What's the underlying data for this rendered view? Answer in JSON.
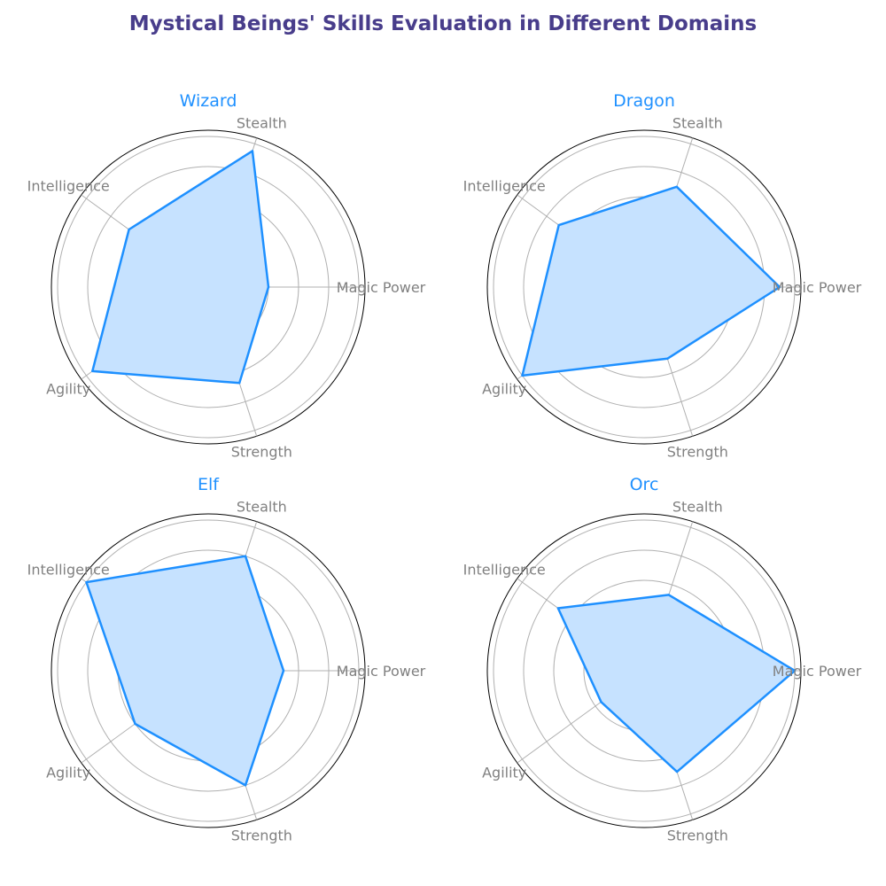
{
  "title": "Mystical Beings' Skills Evaluation in Different Domains",
  "colors": {
    "title": "#483d8b",
    "subtitle": "#1e90ff",
    "line": "#1e90ff",
    "fill": "#c6e2ff",
    "grid": "#b0b0b0",
    "label": "#808080"
  },
  "chart_data": [
    {
      "type": "radar",
      "title": "Wizard",
      "categories": [
        "Magic Power",
        "Stealth",
        "Intelligence",
        "Agility",
        "Strength"
      ],
      "values": [
        40,
        95,
        65,
        95,
        67
      ],
      "rmax": 100,
      "grid": true
    },
    {
      "type": "radar",
      "title": "Dragon",
      "categories": [
        "Magic Power",
        "Stealth",
        "Intelligence",
        "Agility",
        "Strength"
      ],
      "values": [
        90,
        70,
        70,
        100,
        50
      ],
      "rmax": 100,
      "grid": true
    },
    {
      "type": "radar",
      "title": "Elf",
      "categories": [
        "Magic Power",
        "Stealth",
        "Intelligence",
        "Agility",
        "Strength"
      ],
      "values": [
        50,
        80,
        100,
        60,
        80
      ],
      "rmax": 100,
      "grid": true
    },
    {
      "type": "radar",
      "title": "Orc",
      "categories": [
        "Magic Power",
        "Stealth",
        "Intelligence",
        "Agility",
        "Strength"
      ],
      "values": [
        85,
        45,
        60,
        30,
        60
      ],
      "rmax": 85,
      "grid": true
    }
  ]
}
